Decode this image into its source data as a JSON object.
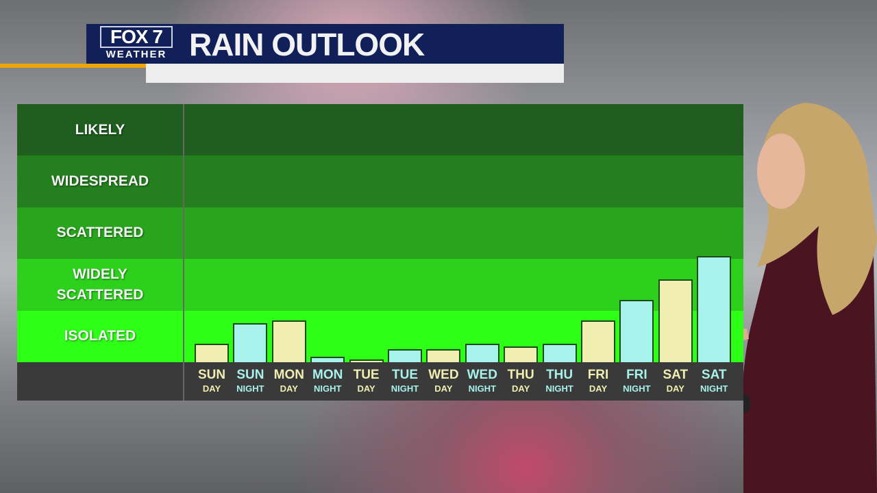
{
  "header": {
    "logo_top": "FOX 7",
    "logo_bottom": "WEATHER",
    "title": "RAIN OUTLOOK"
  },
  "colors": {
    "header": "#12205a",
    "accent": "#f0a500",
    "day_bar": "#f0eeb0",
    "night_bar": "#a8f2ec",
    "bands": [
      "#1f5e1f",
      "#247f1e",
      "#28a51c",
      "#2dd11c",
      "#2eff16"
    ]
  },
  "chart_data": {
    "type": "bar",
    "title": "RAIN OUTLOOK",
    "y_categories": [
      "ISOLATED",
      "WIDELY SCATTERED",
      "SCATTERED",
      "WIDESPREAD",
      "LIKELY"
    ],
    "ylim": [
      0,
      5
    ],
    "categories": [
      {
        "day": "SUN",
        "period": "DAY"
      },
      {
        "day": "SUN",
        "period": "NIGHT"
      },
      {
        "day": "MON",
        "period": "DAY"
      },
      {
        "day": "MON",
        "period": "NIGHT"
      },
      {
        "day": "TUE",
        "period": "DAY"
      },
      {
        "day": "TUE",
        "period": "NIGHT"
      },
      {
        "day": "WED",
        "period": "DAY"
      },
      {
        "day": "WED",
        "period": "NIGHT"
      },
      {
        "day": "THU",
        "period": "DAY"
      },
      {
        "day": "THU",
        "period": "NIGHT"
      },
      {
        "day": "FRI",
        "period": "DAY"
      },
      {
        "day": "FRI",
        "period": "NIGHT"
      },
      {
        "day": "SAT",
        "period": "DAY"
      },
      {
        "day": "SAT",
        "period": "NIGHT"
      }
    ],
    "values": [
      0.36,
      0.76,
      0.81,
      0.11,
      0.05,
      0.25,
      0.25,
      0.36,
      0.31,
      0.36,
      0.81,
      1.21,
      1.6,
      2.06
    ],
    "grid": false
  }
}
